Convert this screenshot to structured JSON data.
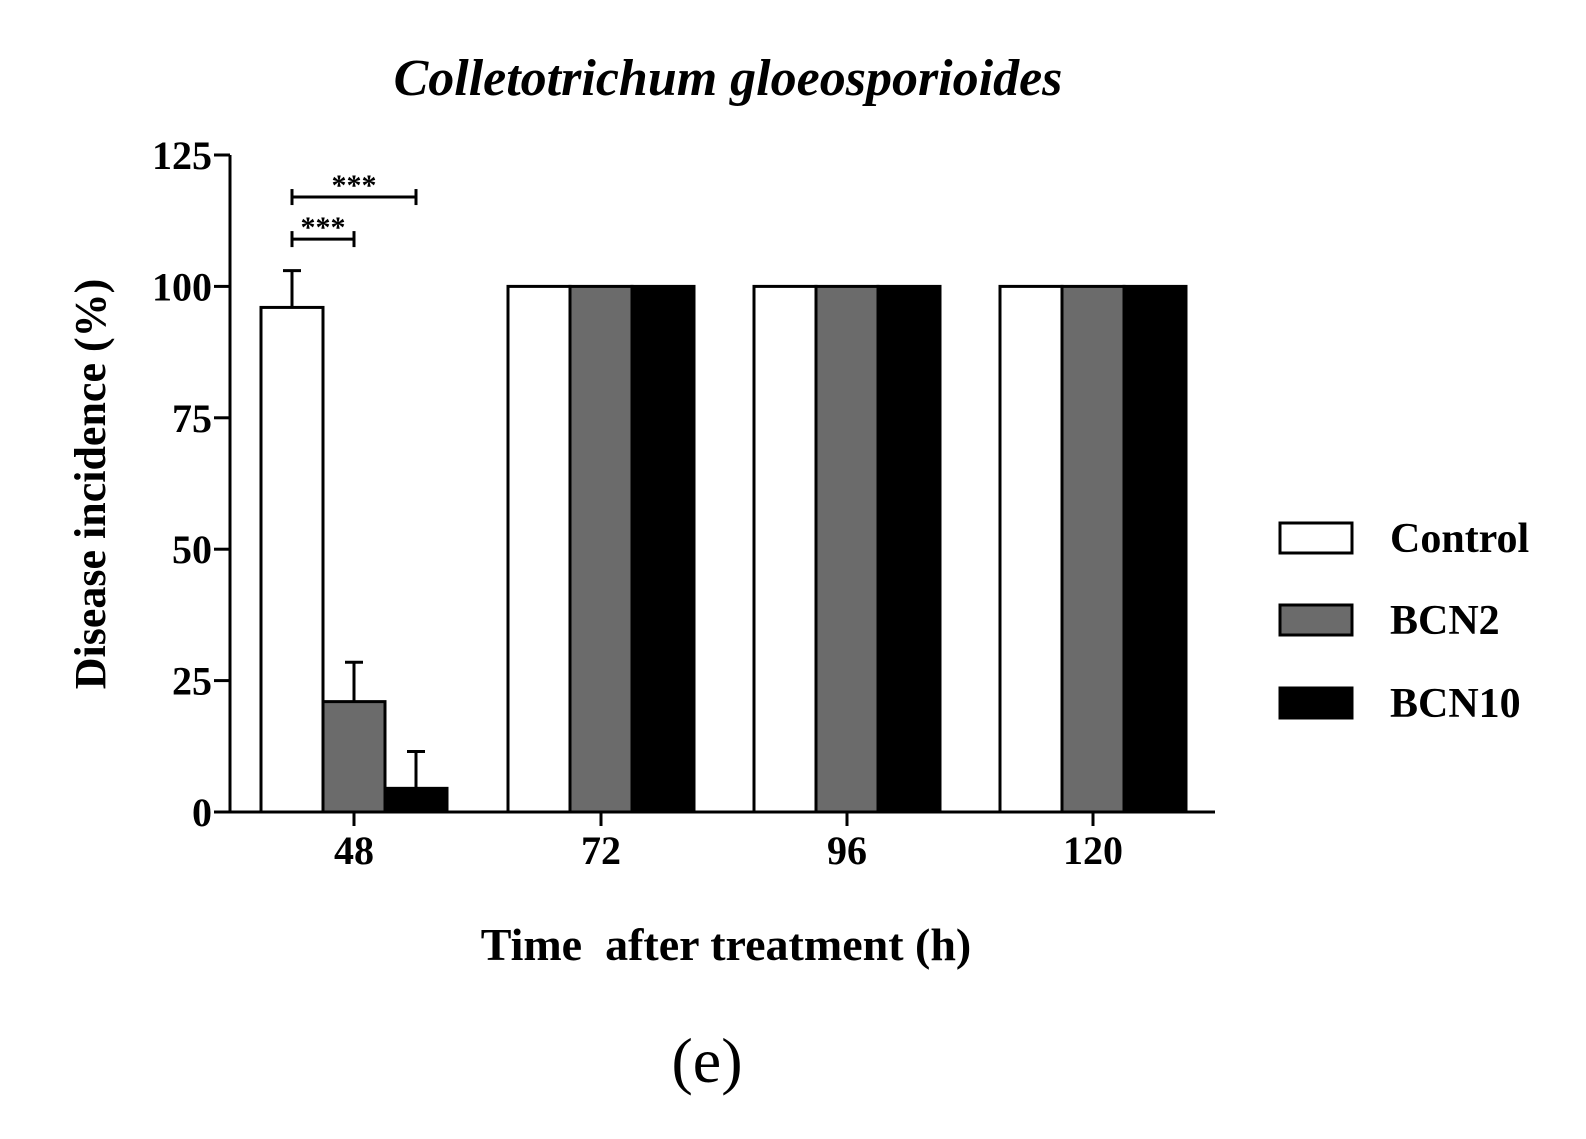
{
  "chart_data": {
    "type": "bar",
    "title": "Colletotrichum gloeosporioides",
    "xlabel": "Time  after treatment (h)",
    "ylabel": "Disease incidence (%)",
    "panel_label": "(e)",
    "categories": [
      "48",
      "72",
      "96",
      "120"
    ],
    "ylim": [
      0,
      125
    ],
    "yticks": [
      0,
      25,
      50,
      75,
      100,
      125
    ],
    "grid": false,
    "legend_position": "right",
    "series": [
      {
        "name": "Control",
        "color": "#ffffff",
        "values": [
          96,
          100,
          100,
          100
        ],
        "errors": [
          7,
          0,
          0,
          0
        ]
      },
      {
        "name": "BCN2",
        "color": "#6b6b6b",
        "values": [
          21,
          100,
          100,
          100
        ],
        "errors": [
          7.5,
          0,
          0,
          0
        ]
      },
      {
        "name": "BCN10",
        "color": "#000000",
        "values": [
          4.5,
          100,
          100,
          100
        ],
        "errors": [
          7,
          0,
          0,
          0
        ]
      }
    ],
    "significance": [
      {
        "category": "48",
        "from_series": "Control",
        "to_series": "BCN2",
        "label": "***",
        "level": 109
      },
      {
        "category": "48",
        "from_series": "Control",
        "to_series": "BCN10",
        "label": "***",
        "level": 117
      }
    ]
  }
}
